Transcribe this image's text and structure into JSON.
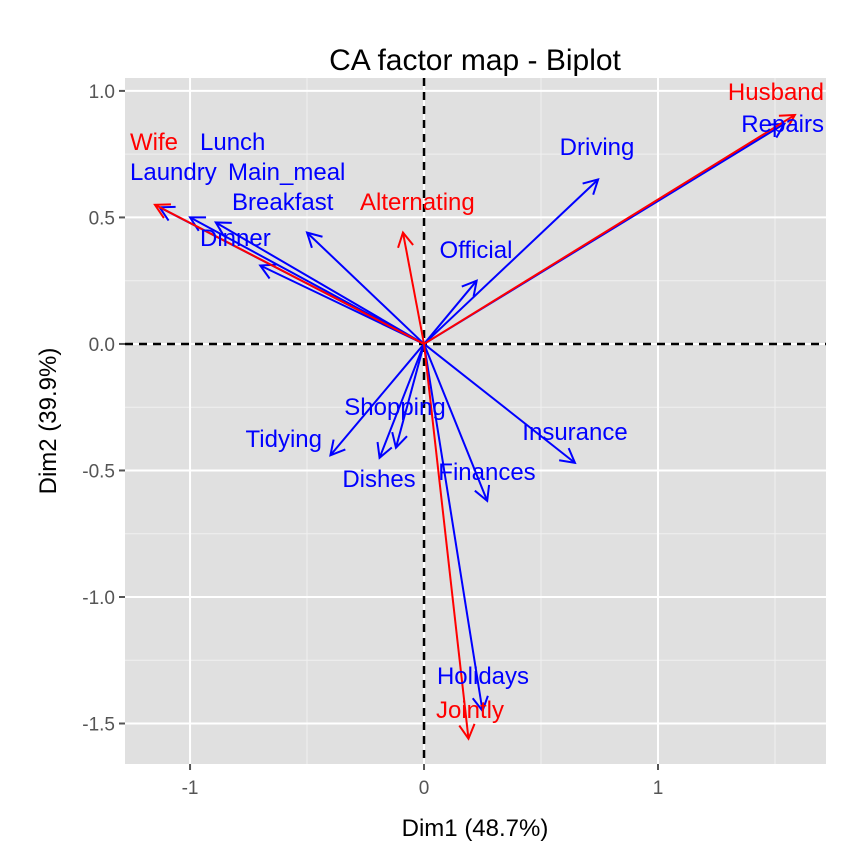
{
  "chart_data": {
    "type": "scatter",
    "title": "CA factor map - Biplot",
    "xlabel": "Dim1 (48.7%)",
    "ylabel": "Dim2 (39.9%)",
    "xlim": [
      -1.278,
      1.718
    ],
    "ylim": [
      -1.66,
      1.051
    ],
    "xticks": [
      -1,
      0,
      1
    ],
    "xtick_labels": [
      "-1",
      "0",
      "1"
    ],
    "yticks": [
      1.0,
      0.5,
      0.0,
      -0.5,
      -1.0,
      -1.5
    ],
    "ytick_labels": [
      "1.0",
      "0.5",
      "0.0",
      "-0.5",
      "-1.0",
      "-1.5"
    ],
    "grid": true,
    "background": "#e0e0e0",
    "series": [
      {
        "name": "columns",
        "color": "#0000ff",
        "points": [
          {
            "label": "Laundry",
            "x": -1.0,
            "y": 0.5
          },
          {
            "label": "Main_meal",
            "x": -0.89,
            "y": 0.48
          },
          {
            "label": "Lunch",
            "x": -1.13,
            "y": 0.54
          },
          {
            "label": "Breakfast",
            "x": -0.5,
            "y": 0.44
          },
          {
            "label": "Dinner",
            "x": -0.7,
            "y": 0.31
          },
          {
            "label": "Tidying",
            "x": -0.4,
            "y": -0.44
          },
          {
            "label": "Dishes",
            "x": -0.19,
            "y": -0.45
          },
          {
            "label": "Shopping",
            "x": -0.12,
            "y": -0.41
          },
          {
            "label": "Official",
            "x": 0.225,
            "y": 0.25
          },
          {
            "label": "Driving",
            "x": 0.744,
            "y": 0.65
          },
          {
            "label": "Finances",
            "x": 0.27,
            "y": -0.62
          },
          {
            "label": "Insurance",
            "x": 0.645,
            "y": -0.47
          },
          {
            "label": "Repairs",
            "x": 1.54,
            "y": 0.87
          },
          {
            "label": "Holidays",
            "x": 0.25,
            "y": -1.45
          }
        ]
      },
      {
        "name": "rows",
        "color": "#ff0000",
        "points": [
          {
            "label": "Wife",
            "x": -1.15,
            "y": 0.55
          },
          {
            "label": "Alternating",
            "x": -0.09,
            "y": 0.44
          },
          {
            "label": "Husband",
            "x": 1.585,
            "y": 0.905
          },
          {
            "label": "Jointly",
            "x": 0.19,
            "y": -1.56
          }
        ]
      }
    ]
  }
}
